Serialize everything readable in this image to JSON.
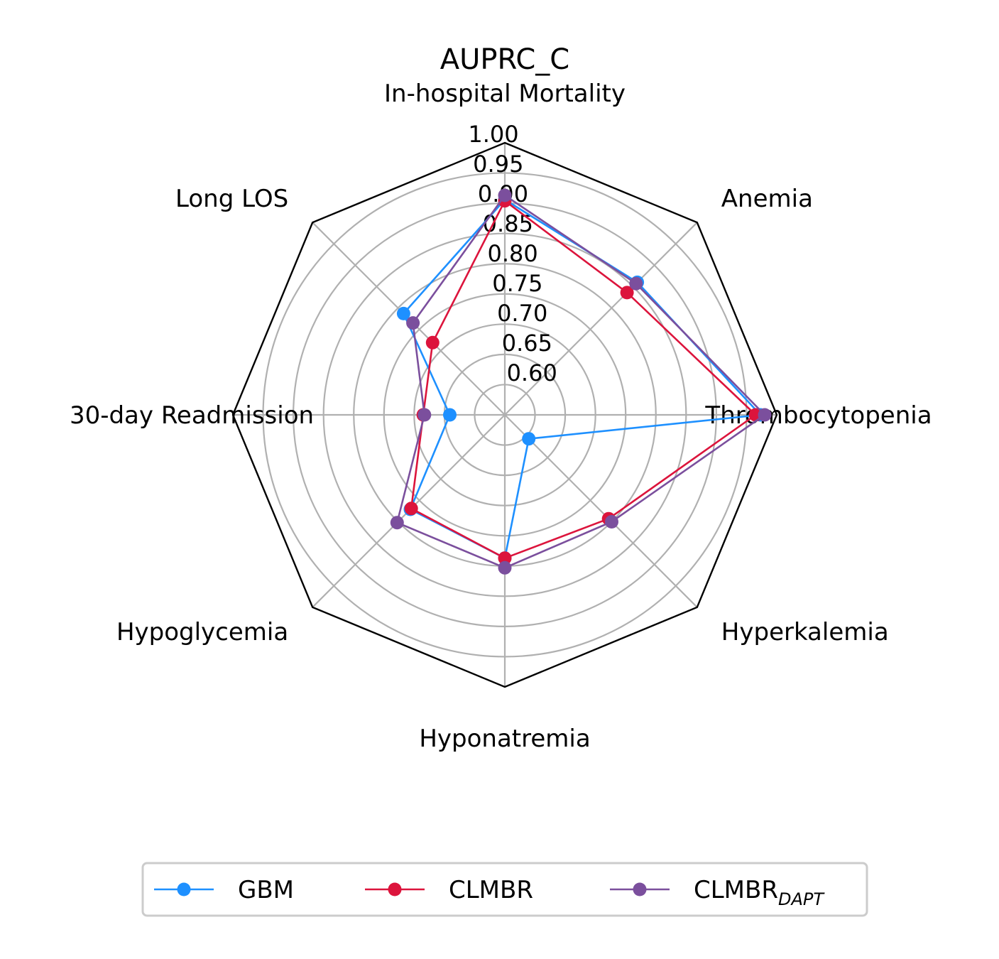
{
  "chart_data": {
    "type": "radar",
    "title": "AUPRC_C",
    "axes": [
      "In-hospital Mortality",
      "Anemia",
      "Thrombocytopenia",
      "Hyperkalemia",
      "Hyponatremia",
      "Hypoglycemia",
      "30-day Readmission",
      "Long LOS"
    ],
    "radial_ticks": [
      "0.60",
      "0.65",
      "0.70",
      "0.75",
      "0.80",
      "0.85",
      "0.90",
      "0.95",
      "1.00"
    ],
    "rlim": [
      0.55,
      1.0
    ],
    "grid": true,
    "legend_position": "bottom",
    "series": [
      {
        "name": "GBM",
        "color": "#1e90ff",
        "values": [
          0.906,
          0.86,
          0.973,
          0.606,
          0.787,
          0.771,
          0.641,
          0.787
        ]
      },
      {
        "name": "CLMBR",
        "color": "#dc143c",
        "values": [
          0.904,
          0.836,
          0.965,
          0.793,
          0.787,
          0.769,
          0.685,
          0.719
        ]
      },
      {
        "name": "CLMBR",
        "name_subscript": "DAPT",
        "color": "#7b4f9d",
        "values": [
          0.913,
          0.857,
          0.98,
          0.8,
          0.803,
          0.802,
          0.683,
          0.765
        ]
      }
    ]
  }
}
